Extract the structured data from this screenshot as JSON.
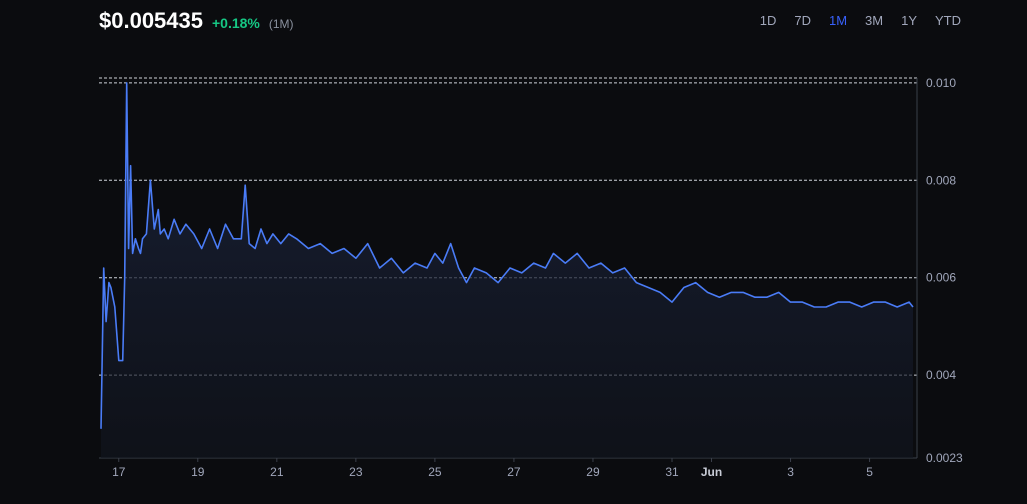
{
  "header": {
    "price": "$0.005435",
    "change": "+0.18%",
    "period": "(1M)"
  },
  "ranges": [
    {
      "label": "1D",
      "active": false
    },
    {
      "label": "7D",
      "active": false
    },
    {
      "label": "1M",
      "active": true
    },
    {
      "label": "3M",
      "active": false
    },
    {
      "label": "1Y",
      "active": false
    },
    {
      "label": "YTD",
      "active": false
    }
  ],
  "colors": {
    "line": "#4a7cf7",
    "positive": "#16c784",
    "active_tab": "#3861fb",
    "background": "#0b0c0f"
  },
  "chart_data": {
    "type": "area",
    "x_ticks": [
      "17",
      "19",
      "21",
      "23",
      "25",
      "27",
      "29",
      "31",
      "Jun",
      "3",
      "5"
    ],
    "y_ticks": [
      "0.010",
      "0.008",
      "0.006",
      "0.004",
      "0.0023"
    ],
    "ylim": [
      0.0023,
      0.0101
    ],
    "xlim": [
      16.5,
      37.2
    ],
    "grid": "dashed horizontal",
    "series": [
      {
        "x": [
          16.55,
          16.62,
          16.68,
          16.75,
          16.8,
          16.9,
          17.0,
          17.1,
          17.15,
          17.2,
          17.25,
          17.3,
          17.35,
          17.42,
          17.5,
          17.55,
          17.6,
          17.7,
          17.8,
          17.9,
          18.0,
          18.05,
          18.15,
          18.25,
          18.4,
          18.55,
          18.7,
          18.9,
          19.1,
          19.3,
          19.5,
          19.7,
          19.9,
          20.1,
          20.2,
          20.3,
          20.45,
          20.6,
          20.75,
          20.9,
          21.1,
          21.3,
          21.5,
          21.8,
          22.1,
          22.4,
          22.7,
          23.0,
          23.3,
          23.6,
          23.9,
          24.2,
          24.5,
          24.8,
          25.0,
          25.2,
          25.4,
          25.6,
          25.8,
          26.0,
          26.3,
          26.6,
          26.9,
          27.2,
          27.5,
          27.8,
          28.0,
          28.3,
          28.6,
          28.9,
          29.2,
          29.5,
          29.8,
          30.1,
          30.4,
          30.7,
          31.0,
          31.3,
          31.6,
          31.9,
          32.2,
          32.5,
          32.8,
          33.1,
          33.4,
          33.7,
          34.0,
          34.3,
          34.6,
          34.9,
          35.2,
          35.5,
          35.8,
          36.1,
          36.4,
          36.7,
          37.0,
          37.1
        ],
        "y": [
          0.0029,
          0.0062,
          0.0051,
          0.0059,
          0.0058,
          0.0054,
          0.0043,
          0.0043,
          0.006,
          0.01,
          0.0066,
          0.0083,
          0.0065,
          0.0068,
          0.0066,
          0.0065,
          0.0068,
          0.0069,
          0.008,
          0.007,
          0.0074,
          0.0069,
          0.007,
          0.0068,
          0.0072,
          0.0069,
          0.0071,
          0.0069,
          0.0066,
          0.007,
          0.0066,
          0.0071,
          0.0068,
          0.0068,
          0.0079,
          0.0067,
          0.0066,
          0.007,
          0.0067,
          0.0069,
          0.0067,
          0.0069,
          0.0068,
          0.0066,
          0.0067,
          0.0065,
          0.0066,
          0.0064,
          0.0067,
          0.0062,
          0.0064,
          0.0061,
          0.0063,
          0.0062,
          0.0065,
          0.0063,
          0.0067,
          0.0062,
          0.0059,
          0.0062,
          0.0061,
          0.0059,
          0.0062,
          0.0061,
          0.0063,
          0.0062,
          0.0065,
          0.0063,
          0.0065,
          0.0062,
          0.0063,
          0.0061,
          0.0062,
          0.0059,
          0.0058,
          0.0057,
          0.0055,
          0.0058,
          0.0059,
          0.0057,
          0.0056,
          0.0057,
          0.0057,
          0.0056,
          0.0056,
          0.0057,
          0.0055,
          0.0055,
          0.0054,
          0.0054,
          0.0055,
          0.0055,
          0.0054,
          0.0055,
          0.0055,
          0.0054,
          0.0055,
          0.0054
        ]
      }
    ]
  }
}
